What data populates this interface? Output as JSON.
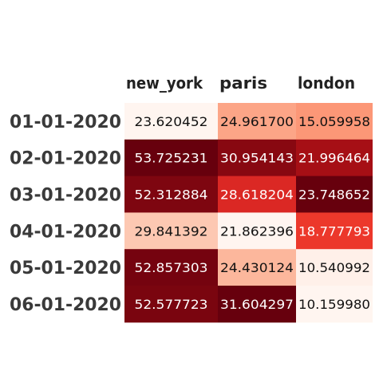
{
  "chart_data": {
    "type": "heatmap",
    "columns": [
      "new_york",
      "paris",
      "london"
    ],
    "rows": [
      "01-01-2020",
      "02-01-2020",
      "03-01-2020",
      "04-01-2020",
      "05-01-2020",
      "06-01-2020"
    ],
    "values": [
      [
        "23.620452",
        "24.961700",
        "15.059958"
      ],
      [
        "53.725231",
        "30.954143",
        "21.996464"
      ],
      [
        "52.312884",
        "28.618204",
        "23.748652"
      ],
      [
        "29.841392",
        "21.862396",
        "18.777793"
      ],
      [
        "52.857303",
        "24.430124",
        "10.540992"
      ],
      [
        "52.577723",
        "31.604297",
        "10.159980"
      ]
    ],
    "colormap": "Reds",
    "color_scale": "per-column"
  }
}
